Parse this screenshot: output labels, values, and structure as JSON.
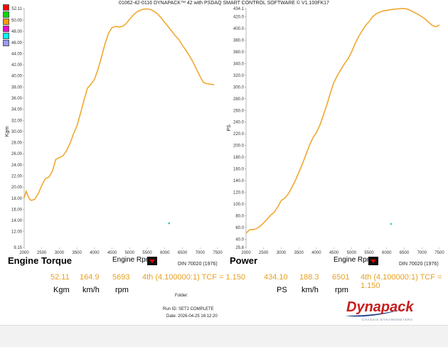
{
  "header": {
    "title": "01062-42-0116 DYNAPACK™ 42 with PSDAQ SMART CONTROL SOFTWARE © V1.100FK17"
  },
  "legend_colors": [
    "#ff0000",
    "#00dd00",
    "#ff9900",
    "#ff00cc",
    "#00ffff",
    "#9999ff"
  ],
  "colors": {
    "curve": "#f0a830",
    "marker": "#22dd77",
    "readout": "#e8a020"
  },
  "torque_panel": {
    "title": "Engine Torque",
    "x_label": "Engine Rpm",
    "y_label": "Kgm",
    "din": "DIN 70020 (1976)",
    "readout": {
      "value": "52.11",
      "speed": "164.9",
      "rpm": "5693",
      "gear": "4th (4.100000:1) TCF = 1.150"
    },
    "units": {
      "value": "Kgm",
      "speed": "km/h",
      "rpm": "rpm"
    }
  },
  "power_panel": {
    "title": "Power",
    "x_label": "Engine Rpm",
    "y_label": "PS",
    "din": "DIN 70020 (1976)",
    "readout": {
      "value": "434.10",
      "speed": "188.3",
      "rpm": "6501",
      "gear": "4th (4.100000:1) TCF = 1.150"
    },
    "units": {
      "value": "PS",
      "speed": "km/h",
      "rpm": "rpm"
    }
  },
  "footer": {
    "folder": "Folder:",
    "run_id": "Run ID:  SET2 COMPLETE",
    "date": "Date:  2026-04-25 16:12:20"
  },
  "logo": {
    "text": "Dynapack",
    "subtext": "CHASSIS DYNAMOMETERS"
  },
  "chart_data": [
    {
      "type": "line",
      "title": "Engine Torque",
      "xlabel": "Engine Rpm",
      "ylabel": "Kgm",
      "xlim": [
        2000,
        7500
      ],
      "ylim": [
        9.15,
        52.11
      ],
      "x_ticks": [
        "2000",
        "2500",
        "3000",
        "3500",
        "4000",
        "4500",
        "5000",
        "5500",
        "6000",
        "6500",
        "7000",
        "7500"
      ],
      "y_ticks": [
        "52.11",
        "50.00",
        "48.00",
        "46.00",
        "44.00",
        "42.00",
        "40.00",
        "38.00",
        "36.00",
        "34.00",
        "32.00",
        "30.00",
        "28.00",
        "26.00",
        "24.00",
        "22.00",
        "20.00",
        "18.00",
        "16.00",
        "14.00",
        "12.00",
        "9.15"
      ],
      "series": [
        {
          "x": [
            2000,
            2060,
            2100,
            2150,
            2200,
            2300,
            2400,
            2500,
            2600,
            2700,
            2800,
            2900,
            3000,
            3100,
            3200,
            3300,
            3400,
            3500,
            3600,
            3700,
            3800,
            3900,
            4000,
            4100,
            4200,
            4300,
            4400,
            4500,
            4600,
            4700,
            4800,
            4900,
            5000,
            5100,
            5200,
            5300,
            5400,
            5500,
            5600,
            5700,
            5800,
            5900,
            6000,
            6100,
            6200,
            6300,
            6400,
            6500,
            6600,
            6700,
            6800,
            6900,
            7000,
            7100,
            7200,
            7300,
            7400
          ],
          "y": [
            18.1,
            19.3,
            18.5,
            17.9,
            17.6,
            17.8,
            18.8,
            20.3,
            21.5,
            21.8,
            22.8,
            25.0,
            25.3,
            25.6,
            26.5,
            27.8,
            29.5,
            31.0,
            33.2,
            35.6,
            37.8,
            38.5,
            39.4,
            41.2,
            43.4,
            45.8,
            47.7,
            48.7,
            48.9,
            48.8,
            48.9,
            49.4,
            50.2,
            50.9,
            51.5,
            51.8,
            52.0,
            52.05,
            51.9,
            51.6,
            51.1,
            50.4,
            49.6,
            48.8,
            48.0,
            47.2,
            46.5,
            45.5,
            44.6,
            43.6,
            42.5,
            41.2,
            39.9,
            38.8,
            38.6,
            38.5,
            38.4
          ]
        }
      ],
      "marker": {
        "x": 6120,
        "y": 13.5
      }
    },
    {
      "type": "line",
      "title": "Power",
      "xlabel": "Engine Rpm",
      "ylabel": "PS",
      "xlim": [
        2000,
        7500
      ],
      "ylim": [
        25.8,
        434.1
      ],
      "x_ticks": [
        "2000",
        "2500",
        "3000",
        "3500",
        "4000",
        "4500",
        "5000",
        "5500",
        "6000",
        "6500",
        "7000",
        "7500"
      ],
      "y_ticks": [
        "434.1",
        "420.0",
        "400.0",
        "380.0",
        "360.0",
        "340.0",
        "320.0",
        "300.0",
        "280.0",
        "260.0",
        "240.0",
        "220.0",
        "200.0",
        "180.0",
        "160.0",
        "140.0",
        "120.0",
        "100.0",
        "80.0",
        "60.0",
        "40.0",
        "25.8"
      ],
      "series": [
        {
          "x": [
            2000,
            2100,
            2200,
            2300,
            2400,
            2500,
            2600,
            2700,
            2800,
            2900,
            3000,
            3100,
            3200,
            3300,
            3400,
            3500,
            3600,
            3700,
            3800,
            3900,
            4000,
            4100,
            4200,
            4300,
            4400,
            4500,
            4600,
            4700,
            4800,
            4900,
            5000,
            5100,
            5200,
            5300,
            5400,
            5500,
            5600,
            5700,
            5800,
            5900,
            6000,
            6100,
            6200,
            6300,
            6400,
            6500,
            6600,
            6700,
            6800,
            6900,
            7000,
            7100,
            7200,
            7300,
            7400,
            7500
          ],
          "y": [
            50,
            56,
            56,
            58,
            62,
            68,
            74,
            81,
            86,
            95,
            106,
            110,
            117,
            128,
            140,
            154,
            168,
            184,
            200,
            213,
            222,
            235,
            252,
            270,
            290,
            308,
            320,
            330,
            340,
            348,
            360,
            374,
            386,
            396,
            405,
            412,
            420,
            425,
            428,
            430,
            431,
            432,
            433,
            433.5,
            434,
            434,
            433,
            430,
            427,
            424,
            420,
            416,
            410,
            405,
            403,
            406
          ]
        }
      ],
      "marker": {
        "x": 6120,
        "y": 66
      }
    }
  ]
}
